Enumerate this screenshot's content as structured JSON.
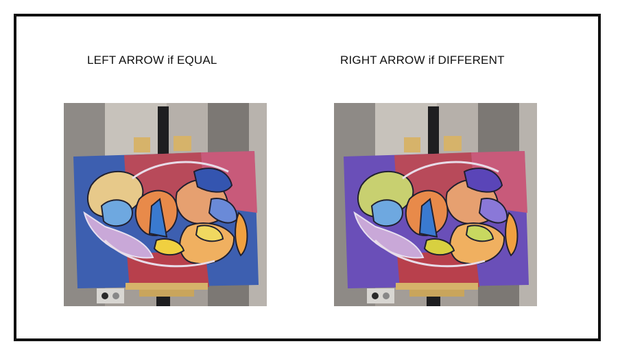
{
  "instructions": {
    "left": "LEFT ARROW if EQUAL",
    "right": "RIGHT ARROW if DIFFERENT"
  },
  "stimuli": [
    {
      "id": "left-painting",
      "canvas_left_color": "#3d5fb0",
      "canvas_top_color": "#b84a5a",
      "canvas_right_color": "#c85a7a"
    },
    {
      "id": "right-painting",
      "canvas_left_color": "#6a4fb8",
      "canvas_top_color": "#b84a5a",
      "canvas_right_color": "#c85a7a"
    }
  ],
  "colors": {
    "frame": "#111111",
    "background": "#ffffff",
    "wall": "#a39d97"
  }
}
